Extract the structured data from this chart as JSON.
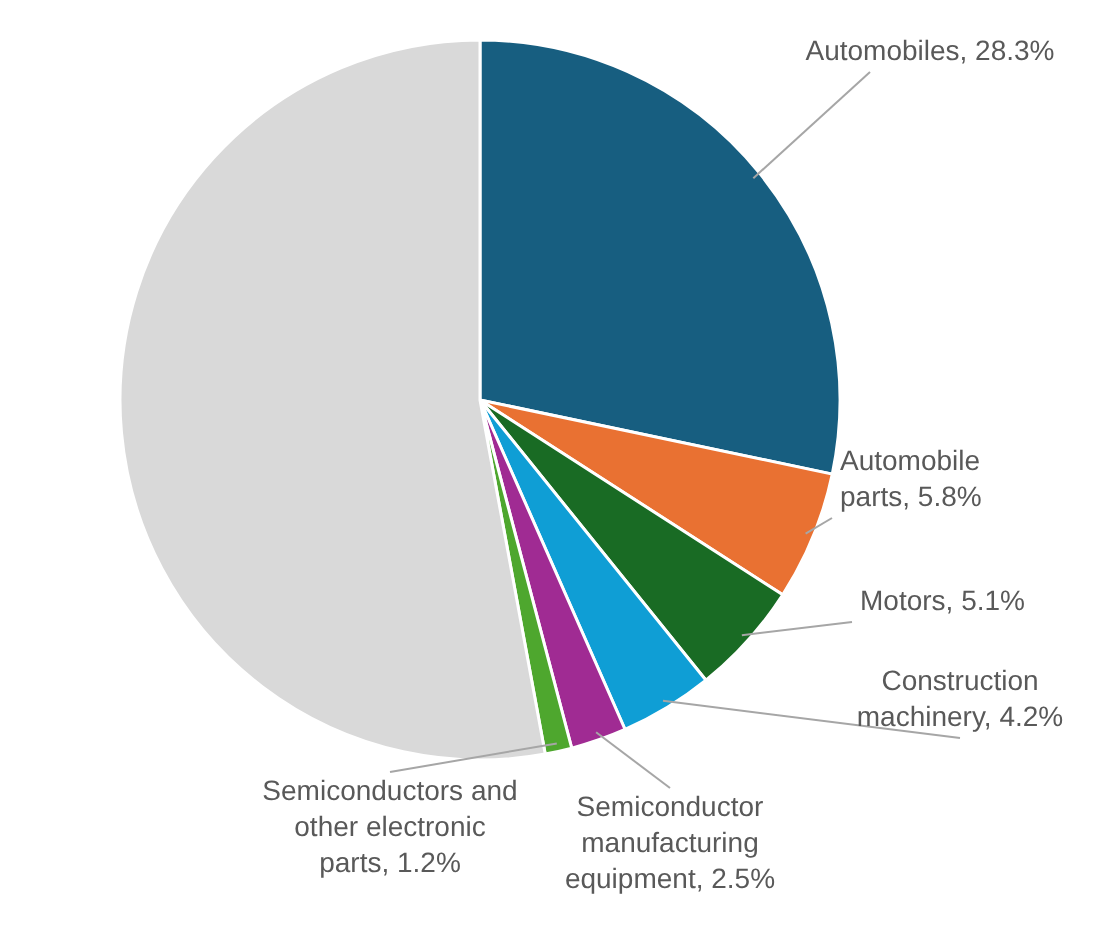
{
  "chart_data": {
    "type": "pie",
    "categories": [
      "Automobiles",
      "Automobile parts",
      "Motors",
      "Construction machinery",
      "Semiconductor manufacturing equipment",
      "Semiconductors and other electronic parts",
      null
    ],
    "values": [
      28.3,
      5.8,
      5.1,
      4.2,
      2.5,
      1.2,
      52.9
    ],
    "colors": [
      "#175e80",
      "#e97132",
      "#196b24",
      "#0f9ed5",
      "#a02b93",
      "#4ea72e",
      "#d9d9d9"
    ],
    "value_labels": [
      "28.3%",
      "5.8%",
      "5.1%",
      "4.2%",
      "2.5%",
      "1.2%",
      null
    ]
  }
}
